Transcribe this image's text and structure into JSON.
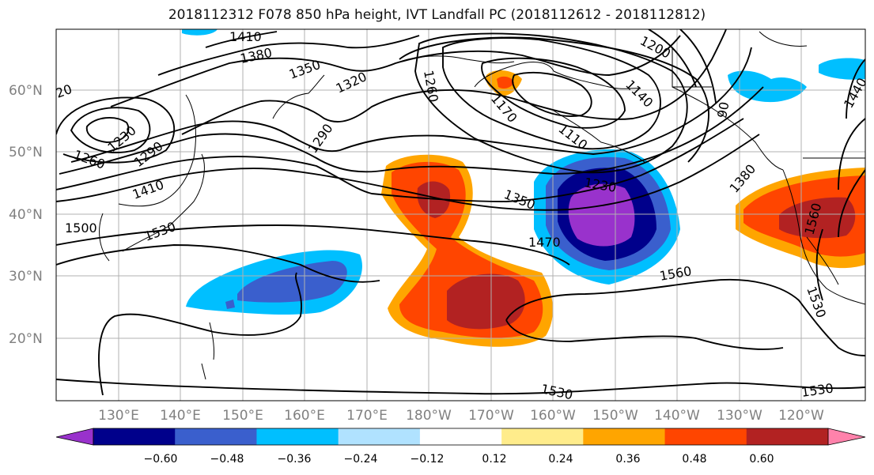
{
  "title": "2018112312 F078 850 hPa height, IVT Landfall PC (2018112612 - 2018112812)",
  "map": {
    "lat_labels": [
      "60°N",
      "50°N",
      "40°N",
      "30°N",
      "20°N"
    ],
    "lon_labels": [
      "130°E",
      "140°E",
      "150°E",
      "160°E",
      "170°E",
      "180°W",
      "170°W",
      "160°W",
      "150°W",
      "140°W",
      "130°W",
      "120°W"
    ],
    "contour_labels": [
      "1410",
      "1380",
      "1350",
      "1320",
      "1290",
      "1260",
      "1230",
      "1290",
      "1410",
      "1500",
      "1530",
      "1200",
      "1260",
      "1170",
      "1140",
      "1110",
      "1230",
      "1350",
      "1470",
      "1560",
      "1380",
      "1560",
      "1530",
      "1530",
      "1530",
      "20",
      "1440",
      "90"
    ]
  },
  "colorbar": {
    "ticks": [
      "−0.60",
      "−0.48",
      "−0.36",
      "−0.24",
      "−0.12",
      "0.12",
      "0.24",
      "0.36",
      "0.48",
      "0.60"
    ],
    "colors": [
      "#9932cc",
      "#00008b",
      "#3a5fcd",
      "#00bfff",
      "#b0e2ff",
      "#ffffff",
      "#ffec8b",
      "#ffa500",
      "#ff4500",
      "#b22222",
      "#ff82ab"
    ]
  }
}
